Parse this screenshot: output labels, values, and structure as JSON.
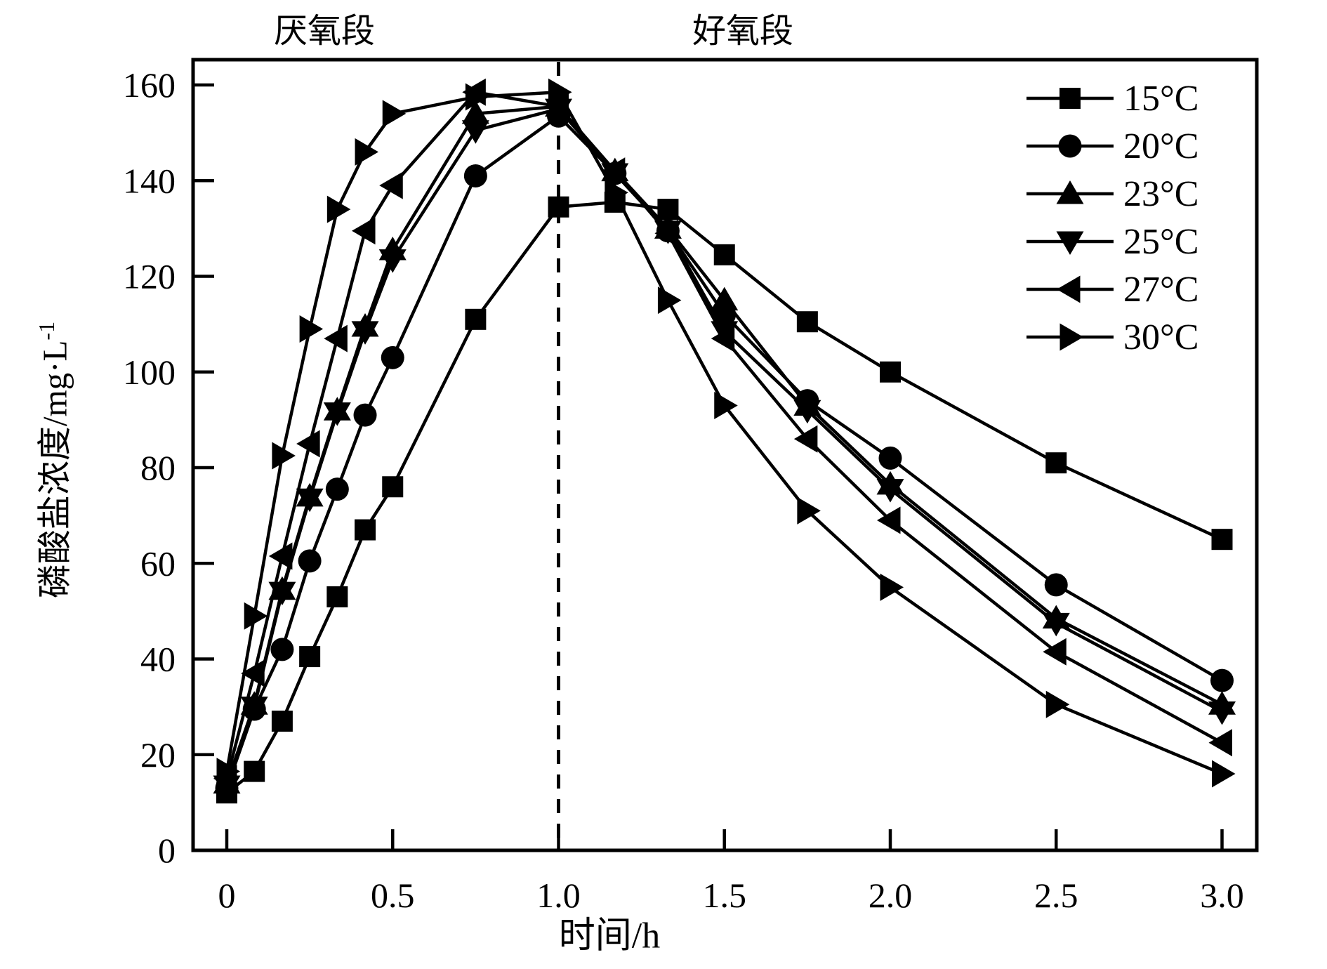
{
  "chart_data": {
    "type": "line",
    "title": "",
    "xlabel": "时间/h",
    "ylabel": "磷酸盐浓度/mg·L⁻¹",
    "ylabel_main": "磷酸盐浓度/mg·L",
    "ylabel_sup": "-1",
    "section_labels": {
      "anaerobic": "厌氧段",
      "aerobic": "好氧段"
    },
    "divider": {
      "x": 1.0,
      "style": "dashed"
    },
    "xlim": [
      0,
      3.0
    ],
    "ylim": [
      0,
      160
    ],
    "grid": false,
    "legend_position": "top-right-inside",
    "x_ticks": [
      0,
      0.5,
      1.0,
      1.5,
      2.0,
      2.5,
      3.0
    ],
    "x_tick_labels": [
      "0",
      "0.5",
      "1.0",
      "1.5",
      "2.0",
      "2.5",
      "3.0"
    ],
    "y_ticks": [
      0,
      20,
      40,
      60,
      80,
      100,
      120,
      140,
      160
    ],
    "y_tick_labels": [
      "0",
      "20",
      "40",
      "60",
      "80",
      "100",
      "120",
      "140",
      "160"
    ],
    "x": [
      0,
      0.083,
      0.167,
      0.25,
      0.333,
      0.417,
      0.5,
      0.75,
      1.0,
      1.17,
      1.33,
      1.5,
      1.75,
      2.0,
      2.5,
      3.0
    ],
    "series": [
      {
        "name": "15°C",
        "marker": "square",
        "values": [
          12,
          16.5,
          27,
          40.5,
          53,
          67,
          76,
          111,
          134.5,
          135.5,
          134,
          124.5,
          110.5,
          100,
          81,
          65
        ]
      },
      {
        "name": "20°C",
        "marker": "circle",
        "values": [
          13,
          29.5,
          42,
          60.5,
          75.5,
          91,
          103,
          141,
          153.5,
          141.5,
          129.5,
          112,
          94,
          82,
          55.5,
          35.5
        ]
      },
      {
        "name": "23°C",
        "marker": "triangle-up",
        "values": [
          14,
          30.5,
          54.5,
          74,
          92,
          109.5,
          125.5,
          154,
          155.5,
          142,
          130,
          115,
          93,
          76.5,
          48.5,
          30.5
        ]
      },
      {
        "name": "25°C",
        "marker": "triangle-down",
        "values": [
          13.5,
          30,
          54,
          73.5,
          91.5,
          108.5,
          123.5,
          150.5,
          155,
          141.5,
          129.5,
          108.5,
          92,
          75.5,
          47.5,
          29
        ]
      },
      {
        "name": "27°C",
        "marker": "triangle-left",
        "values": [
          15,
          37,
          61.5,
          85,
          107,
          129.5,
          139,
          158.5,
          155.5,
          142,
          129,
          107,
          86,
          69,
          41.5,
          22.5
        ]
      },
      {
        "name": "30°C",
        "marker": "triangle-right",
        "values": [
          16.5,
          49,
          82.5,
          109,
          134,
          146,
          154,
          157.5,
          158.5,
          137.5,
          115,
          93,
          71,
          55,
          30.5,
          16
        ]
      }
    ],
    "colors": {
      "foreground": "#000000",
      "background": "#ffffff"
    }
  }
}
